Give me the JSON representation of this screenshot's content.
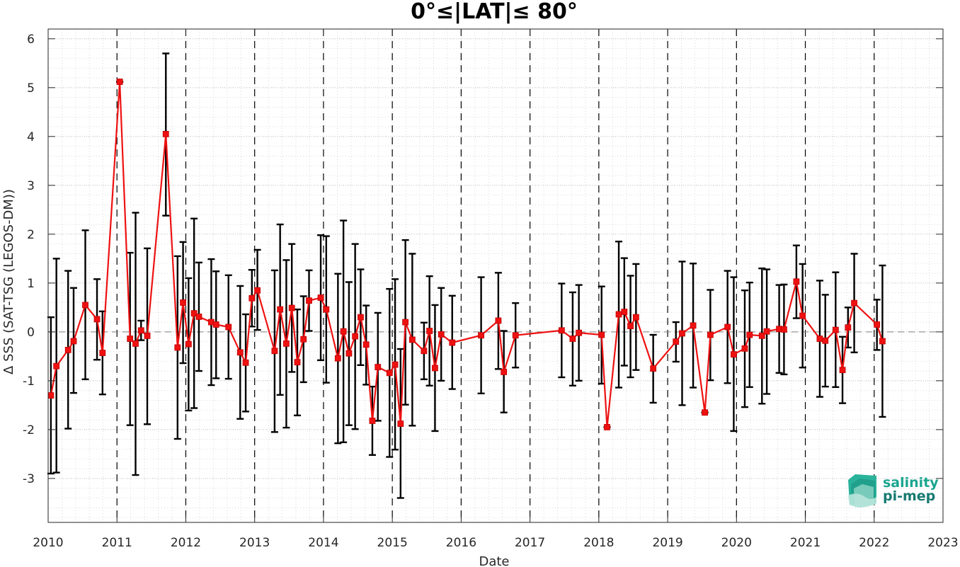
{
  "chart_data": {
    "type": "line",
    "title": "0°≤|LAT|≤ 80°",
    "xlabel": "Date",
    "ylabel": "Δ SSS (SAT-TSG (LEGOS-DM))",
    "xlim": [
      2010,
      2023
    ],
    "ylim": [
      -3.9,
      6.2
    ],
    "x_ticks": [
      "2010",
      "2011",
      "2012",
      "2013",
      "2014",
      "2015",
      "2016",
      "2017",
      "2018",
      "2019",
      "2020",
      "2021",
      "2022",
      "2023"
    ],
    "y_ticks": [
      "-3",
      "-2",
      "-1",
      "0",
      "1",
      "2",
      "3",
      "4",
      "5",
      "6"
    ],
    "grid": "minor dotted",
    "year_boundaries": "dashed vertical lines",
    "zero_line": "dashed",
    "series": [
      {
        "points": [
          {
            "x": 2010.04,
            "y": -1.3,
            "lo": -2.9,
            "hi": 0.3
          },
          {
            "x": 2010.12,
            "y": -0.7,
            "lo": -2.88,
            "hi": 1.5
          },
          {
            "x": 2010.29,
            "y": -0.37,
            "lo": -1.98,
            "hi": 1.25
          },
          {
            "x": 2010.37,
            "y": -0.19,
            "lo": -1.25,
            "hi": 0.9
          },
          {
            "x": 2010.54,
            "y": 0.55,
            "lo": -0.97,
            "hi": 2.08
          },
          {
            "x": 2010.71,
            "y": 0.26,
            "lo": -0.57,
            "hi": 1.08
          },
          {
            "x": 2010.79,
            "y": -0.43,
            "lo": -1.28,
            "hi": 0.42
          },
          {
            "x": 2011.04,
            "y": 5.12,
            "lo": 5.12,
            "hi": 5.12
          },
          {
            "x": 2011.19,
            "y": -0.14,
            "lo": -1.91,
            "hi": 1.62
          },
          {
            "x": 2011.27,
            "y": -0.24,
            "lo": -2.93,
            "hi": 2.44
          },
          {
            "x": 2011.35,
            "y": 0.03,
            "lo": -0.17,
            "hi": 0.23
          },
          {
            "x": 2011.44,
            "y": -0.08,
            "lo": -1.89,
            "hi": 1.71
          },
          {
            "x": 2011.71,
            "y": 4.05,
            "lo": 2.38,
            "hi": 5.7
          },
          {
            "x": 2011.88,
            "y": -0.32,
            "lo": -2.19,
            "hi": 1.55
          },
          {
            "x": 2011.96,
            "y": 0.6,
            "lo": -0.64,
            "hi": 1.84
          },
          {
            "x": 2012.04,
            "y": -0.25,
            "lo": -1.61,
            "hi": 1.1
          },
          {
            "x": 2012.12,
            "y": 0.38,
            "lo": -1.56,
            "hi": 2.32
          },
          {
            "x": 2012.19,
            "y": 0.31,
            "lo": -0.8,
            "hi": 1.42
          },
          {
            "x": 2012.37,
            "y": 0.2,
            "lo": -1.09,
            "hi": 1.49
          },
          {
            "x": 2012.44,
            "y": 0.15,
            "lo": -0.95,
            "hi": 1.24
          },
          {
            "x": 2012.62,
            "y": 0.1,
            "lo": -0.96,
            "hi": 1.16
          },
          {
            "x": 2012.79,
            "y": -0.42,
            "lo": -1.78,
            "hi": 0.94
          },
          {
            "x": 2012.87,
            "y": -0.63,
            "lo": -1.63,
            "hi": 0.36
          },
          {
            "x": 2012.96,
            "y": 0.69,
            "lo": 0.11,
            "hi": 1.27
          },
          {
            "x": 2013.04,
            "y": 0.85,
            "lo": 0.04,
            "hi": 1.68
          },
          {
            "x": 2013.29,
            "y": -0.39,
            "lo": -2.05,
            "hi": 1.26
          },
          {
            "x": 2013.37,
            "y": 0.46,
            "lo": -1.29,
            "hi": 2.2
          },
          {
            "x": 2013.46,
            "y": -0.24,
            "lo": -1.96,
            "hi": 1.47
          },
          {
            "x": 2013.54,
            "y": 0.49,
            "lo": -0.82,
            "hi": 1.8
          },
          {
            "x": 2013.62,
            "y": -0.62,
            "lo": -1.71,
            "hi": 0.46
          },
          {
            "x": 2013.71,
            "y": -0.15,
            "lo": -1.03,
            "hi": 0.73
          },
          {
            "x": 2013.79,
            "y": 0.64,
            "lo": 0.02,
            "hi": 1.26
          },
          {
            "x": 2013.96,
            "y": 0.7,
            "lo": -0.58,
            "hi": 1.98
          },
          {
            "x": 2014.04,
            "y": 0.46,
            "lo": -1.04,
            "hi": 1.96
          },
          {
            "x": 2014.21,
            "y": -0.54,
            "lo": -2.28,
            "hi": 1.19
          },
          {
            "x": 2014.29,
            "y": 0.01,
            "lo": -2.26,
            "hi": 2.28
          },
          {
            "x": 2014.37,
            "y": -0.44,
            "lo": -1.91,
            "hi": 1.02
          },
          {
            "x": 2014.46,
            "y": -0.09,
            "lo": -1.99,
            "hi": 1.8
          },
          {
            "x": 2014.54,
            "y": 0.3,
            "lo": -0.68,
            "hi": 1.28
          },
          {
            "x": 2014.62,
            "y": -0.26,
            "lo": -1.08,
            "hi": 0.54
          },
          {
            "x": 2014.71,
            "y": -1.82,
            "lo": -2.52,
            "hi": -1.12
          },
          {
            "x": 2014.79,
            "y": -0.72,
            "lo": -1.82,
            "hi": 0.39
          },
          {
            "x": 2014.96,
            "y": -0.84,
            "lo": -2.56,
            "hi": 0.88
          },
          {
            "x": 2015.04,
            "y": -0.67,
            "lo": -2.41,
            "hi": 1.08
          },
          {
            "x": 2015.12,
            "y": -1.88,
            "lo": -3.4,
            "hi": -0.35
          },
          {
            "x": 2015.19,
            "y": 0.2,
            "lo": -1.49,
            "hi": 1.88
          },
          {
            "x": 2015.29,
            "y": -0.16,
            "lo": -1.92,
            "hi": 1.6
          },
          {
            "x": 2015.46,
            "y": -0.39,
            "lo": -0.97,
            "hi": 0.19
          },
          {
            "x": 2015.54,
            "y": 0.02,
            "lo": -1.1,
            "hi": 1.14
          },
          {
            "x": 2015.62,
            "y": -0.74,
            "lo": -2.03,
            "hi": 0.55
          },
          {
            "x": 2015.71,
            "y": -0.05,
            "lo": -1.0,
            "hi": 0.9
          },
          {
            "x": 2015.87,
            "y": -0.22,
            "lo": -1.17,
            "hi": 0.74
          },
          {
            "x": 2016.29,
            "y": -0.07,
            "lo": -1.26,
            "hi": 1.12
          },
          {
            "x": 2016.54,
            "y": 0.23,
            "lo": -0.76,
            "hi": 1.21
          },
          {
            "x": 2016.62,
            "y": -0.82,
            "lo": -1.65,
            "hi": 0.02
          },
          {
            "x": 2016.79,
            "y": -0.07,
            "lo": -0.73,
            "hi": 0.59
          },
          {
            "x": 2017.46,
            "y": 0.03,
            "lo": -0.93,
            "hi": 0.99
          },
          {
            "x": 2017.62,
            "y": -0.14,
            "lo": -1.1,
            "hi": 0.81
          },
          {
            "x": 2017.71,
            "y": -0.02,
            "lo": -1.0,
            "hi": 0.96
          },
          {
            "x": 2018.04,
            "y": -0.06,
            "lo": -1.06,
            "hi": 0.93
          },
          {
            "x": 2018.12,
            "y": -1.95,
            "lo": -1.95,
            "hi": -1.95
          },
          {
            "x": 2018.29,
            "y": 0.36,
            "lo": -1.14,
            "hi": 1.85
          },
          {
            "x": 2018.37,
            "y": 0.41,
            "lo": -0.69,
            "hi": 1.51
          },
          {
            "x": 2018.46,
            "y": 0.12,
            "lo": -0.93,
            "hi": 1.15
          },
          {
            "x": 2018.54,
            "y": 0.3,
            "lo": -0.78,
            "hi": 1.39
          },
          {
            "x": 2018.79,
            "y": -0.75,
            "lo": -1.45,
            "hi": -0.06
          },
          {
            "x": 2019.12,
            "y": -0.2,
            "lo": -0.61,
            "hi": 0.2
          },
          {
            "x": 2019.21,
            "y": -0.03,
            "lo": -1.5,
            "hi": 1.44
          },
          {
            "x": 2019.37,
            "y": 0.13,
            "lo": -1.14,
            "hi": 1.4
          },
          {
            "x": 2019.54,
            "y": -1.65,
            "lo": -1.65,
            "hi": -1.65
          },
          {
            "x": 2019.62,
            "y": -0.06,
            "lo": -0.99,
            "hi": 0.86
          },
          {
            "x": 2019.87,
            "y": 0.1,
            "lo": -1.05,
            "hi": 1.25
          },
          {
            "x": 2019.96,
            "y": -0.46,
            "lo": -2.03,
            "hi": 1.12
          },
          {
            "x": 2020.12,
            "y": -0.34,
            "lo": -1.54,
            "hi": 0.85
          },
          {
            "x": 2020.19,
            "y": -0.06,
            "lo": -1.13,
            "hi": 1.01
          },
          {
            "x": 2020.37,
            "y": -0.08,
            "lo": -1.47,
            "hi": 1.3
          },
          {
            "x": 2020.44,
            "y": 0.01,
            "lo": -1.27,
            "hi": 1.28
          },
          {
            "x": 2020.62,
            "y": 0.06,
            "lo": -0.84,
            "hi": 0.96
          },
          {
            "x": 2020.69,
            "y": 0.05,
            "lo": -0.87,
            "hi": 0.97
          },
          {
            "x": 2020.87,
            "y": 1.03,
            "lo": 0.28,
            "hi": 1.77
          },
          {
            "x": 2020.96,
            "y": 0.33,
            "lo": -0.73,
            "hi": 1.39
          },
          {
            "x": 2021.21,
            "y": -0.14,
            "lo": -1.33,
            "hi": 1.05
          },
          {
            "x": 2021.29,
            "y": -0.18,
            "lo": -1.12,
            "hi": 0.76
          },
          {
            "x": 2021.44,
            "y": 0.04,
            "lo": -1.13,
            "hi": 1.22
          },
          {
            "x": 2021.54,
            "y": -0.78,
            "lo": -1.46,
            "hi": -0.1
          },
          {
            "x": 2021.62,
            "y": 0.09,
            "lo": -0.32,
            "hi": 0.5
          },
          {
            "x": 2021.71,
            "y": 0.59,
            "lo": -0.42,
            "hi": 1.6
          },
          {
            "x": 2022.04,
            "y": 0.15,
            "lo": -0.37,
            "hi": 0.66
          },
          {
            "x": 2022.12,
            "y": -0.19,
            "lo": -1.74,
            "hi": 1.36
          }
        ]
      }
    ]
  },
  "logo": {
    "line1": "salinity",
    "line2": "pi-mep"
  }
}
